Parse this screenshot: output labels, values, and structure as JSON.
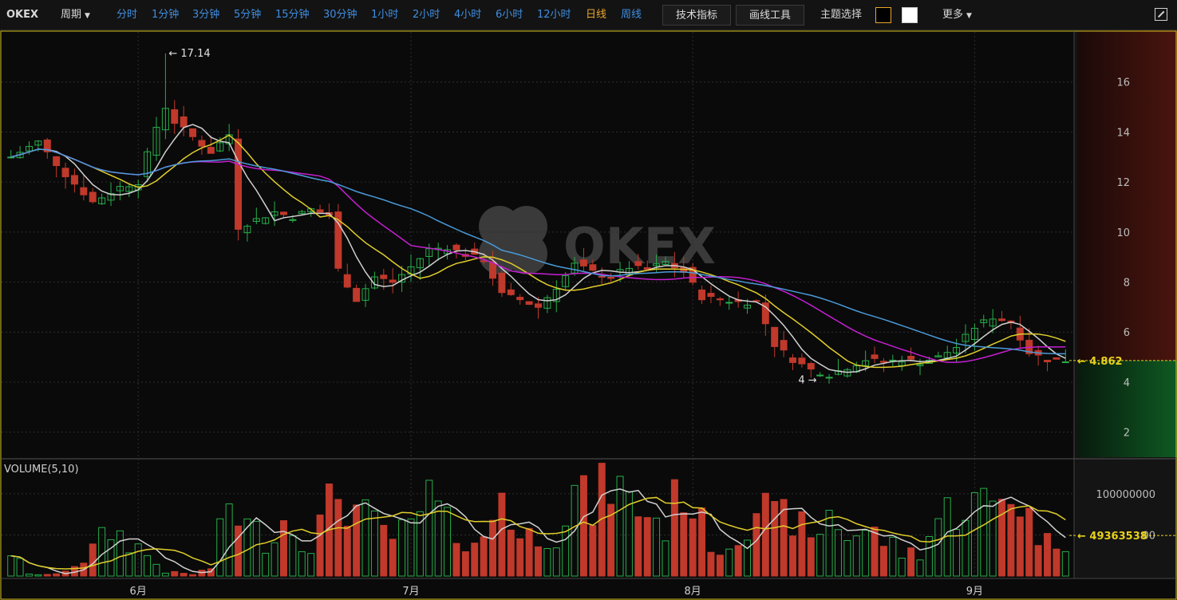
{
  "toolbar": {
    "brand": "OKEX",
    "period_label": "周期",
    "periods": [
      {
        "label": "分时",
        "active": false
      },
      {
        "label": "1分钟",
        "active": false
      },
      {
        "label": "3分钟",
        "active": false
      },
      {
        "label": "5分钟",
        "active": false
      },
      {
        "label": "15分钟",
        "active": false
      },
      {
        "label": "30分钟",
        "active": false
      },
      {
        "label": "1小时",
        "active": false
      },
      {
        "label": "2小时",
        "active": false
      },
      {
        "label": "4小时",
        "active": false
      },
      {
        "label": "6小时",
        "active": false
      },
      {
        "label": "12小时",
        "active": false
      },
      {
        "label": "日线",
        "active": true
      },
      {
        "label": "周线",
        "active": false
      }
    ],
    "indicators_label": "技术指标",
    "drawing_tools_label": "画线工具",
    "theme_label": "主题选择",
    "theme_colors": [
      "#000000",
      "#ffffff"
    ],
    "more_label": "更多",
    "icons": [
      "dropdown-caret-icon",
      "fullscreen-icon"
    ]
  },
  "colors": {
    "up": "#27ae4a",
    "down": "#c0392b",
    "ma1": "#d0d0d0",
    "ma2": "#e0cd2a",
    "ma3": "#c51fd2",
    "ma4": "#4a9ad8",
    "accent": "#e8d11a"
  },
  "watermark": "OKEX",
  "chart_data": {
    "type": "candlestick",
    "price_axis": {
      "ticks": [
        "16",
        "14",
        "12",
        "10",
        "8",
        "6",
        "4",
        "2"
      ],
      "range": [
        1,
        18
      ]
    },
    "volume_axis": {
      "ticks": [
        "100000000",
        "50000000"
      ],
      "range": [
        0,
        130000000
      ]
    },
    "x_labels": [
      {
        "label": "6月",
        "index": 14
      },
      {
        "label": "7月",
        "index": 44
      },
      {
        "label": "8月",
        "index": 75
      },
      {
        "label": "9月",
        "index": 106
      }
    ],
    "last_price": "4.862",
    "last_volume": "49363538",
    "volume_title": "VOLUME(5,10)",
    "max_label": "17.14",
    "max_index": 17,
    "min_label": "4",
    "min_index": 89,
    "key_closes": [
      [
        0,
        13.0
      ],
      [
        3,
        13.6
      ],
      [
        6,
        12.3
      ],
      [
        9,
        11.2
      ],
      [
        12,
        11.8
      ],
      [
        14,
        12.0
      ],
      [
        16,
        14.2
      ],
      [
        17,
        15.0
      ],
      [
        18,
        14.4
      ],
      [
        20,
        13.8
      ],
      [
        22,
        13.2
      ],
      [
        24,
        13.9
      ],
      [
        25,
        10.2
      ],
      [
        27,
        10.5
      ],
      [
        29,
        10.8
      ],
      [
        31,
        10.6
      ],
      [
        33,
        10.9
      ],
      [
        35,
        10.7
      ],
      [
        36,
        8.5
      ],
      [
        38,
        7.3
      ],
      [
        40,
        8.2
      ],
      [
        42,
        8.0
      ],
      [
        44,
        8.6
      ],
      [
        46,
        9.3
      ],
      [
        48,
        9.4
      ],
      [
        50,
        9.1
      ],
      [
        52,
        8.9
      ],
      [
        54,
        7.5
      ],
      [
        56,
        7.3
      ],
      [
        58,
        7.0
      ],
      [
        60,
        7.8
      ],
      [
        62,
        8.7
      ],
      [
        64,
        8.4
      ],
      [
        66,
        8.2
      ],
      [
        68,
        8.6
      ],
      [
        70,
        8.5
      ],
      [
        72,
        8.8
      ],
      [
        74,
        8.4
      ],
      [
        76,
        7.4
      ],
      [
        78,
        7.3
      ],
      [
        80,
        7.2
      ],
      [
        82,
        7.2
      ],
      [
        84,
        5.5
      ],
      [
        86,
        4.9
      ],
      [
        88,
        4.5
      ],
      [
        90,
        4.3
      ],
      [
        92,
        4.6
      ],
      [
        94,
        4.9
      ],
      [
        96,
        4.8
      ],
      [
        98,
        4.9
      ],
      [
        100,
        4.8
      ],
      [
        102,
        5.0
      ],
      [
        104,
        5.4
      ],
      [
        106,
        6.2
      ],
      [
        108,
        6.6
      ],
      [
        110,
        6.4
      ],
      [
        112,
        5.2
      ],
      [
        114,
        4.9
      ],
      [
        116,
        4.86
      ]
    ],
    "key_volumes": [
      [
        0,
        31
      ],
      [
        2,
        2
      ],
      [
        5,
        2
      ],
      [
        8,
        20
      ],
      [
        11,
        56
      ],
      [
        14,
        35
      ],
      [
        17,
        5
      ],
      [
        20,
        2
      ],
      [
        22,
        10
      ],
      [
        24,
        90
      ],
      [
        26,
        60
      ],
      [
        28,
        45
      ],
      [
        30,
        68
      ],
      [
        33,
        40
      ],
      [
        36,
        105
      ],
      [
        38,
        80
      ],
      [
        40,
        60
      ],
      [
        42,
        48
      ],
      [
        44,
        55
      ],
      [
        46,
        95
      ],
      [
        48,
        60
      ],
      [
        50,
        48
      ],
      [
        52,
        40
      ],
      [
        54,
        108
      ],
      [
        56,
        45
      ],
      [
        58,
        52
      ],
      [
        60,
        55
      ],
      [
        62,
        100
      ],
      [
        64,
        80
      ],
      [
        66,
        120
      ],
      [
        68,
        88
      ],
      [
        70,
        78
      ],
      [
        72,
        60
      ],
      [
        74,
        115
      ],
      [
        76,
        60
      ],
      [
        78,
        30
      ],
      [
        80,
        55
      ],
      [
        82,
        90
      ],
      [
        84,
        65
      ],
      [
        86,
        75
      ],
      [
        88,
        40
      ],
      [
        90,
        78
      ],
      [
        92,
        50
      ],
      [
        94,
        55
      ],
      [
        96,
        45
      ],
      [
        98,
        28
      ],
      [
        100,
        30
      ],
      [
        102,
        70
      ],
      [
        104,
        85
      ],
      [
        106,
        88
      ],
      [
        108,
        85
      ],
      [
        110,
        110
      ],
      [
        112,
        70
      ],
      [
        114,
        40
      ],
      [
        116,
        48
      ]
    ],
    "grid": true
  }
}
